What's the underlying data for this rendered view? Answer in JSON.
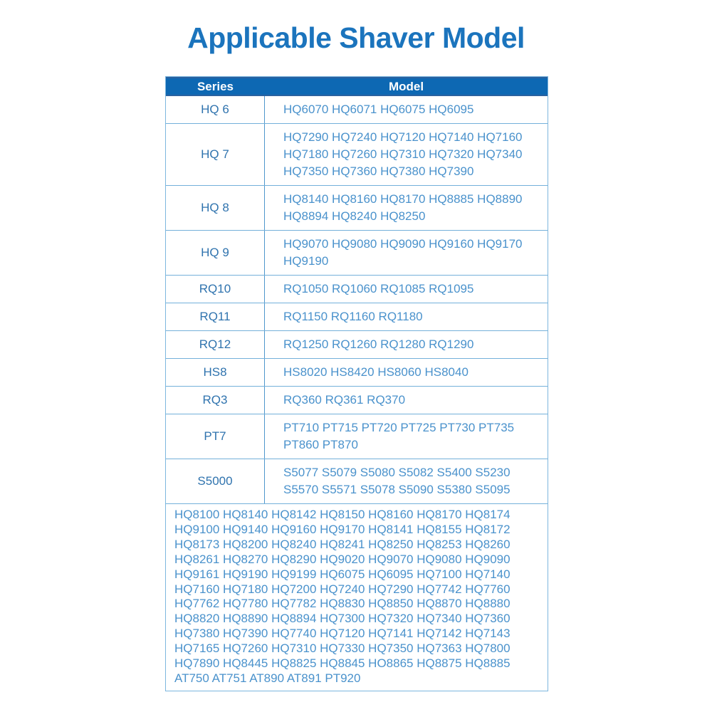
{
  "page": {
    "title": "Applicable Shaver Model"
  },
  "colors": {
    "title_text": "#1b74bd",
    "header_background": "#0d68b3",
    "header_text": "#ffffff",
    "series_text": "#2f73ae",
    "model_text": "#4a92cc",
    "grid_border": "#74b0da"
  },
  "table": {
    "headers": {
      "series": "Series",
      "model": "Model"
    },
    "rows": [
      {
        "series": "HQ 6",
        "models": "HQ6070 HQ6071 HQ6075 HQ6095"
      },
      {
        "series": "HQ 7",
        "models": "HQ7290 HQ7240 HQ7120 HQ7140 HQ7160\nHQ7180 HQ7260 HQ7310 HQ7320 HQ7340\nHQ7350 HQ7360 HQ7380 HQ7390"
      },
      {
        "series": "HQ 8",
        "models": "HQ8140 HQ8160 HQ8170 HQ8885 HQ8890\nHQ8894 HQ8240 HQ8250"
      },
      {
        "series": "HQ 9",
        "models": "HQ9070 HQ9080 HQ9090 HQ9160 HQ9170\nHQ9190"
      },
      {
        "series": "RQ10",
        "models": "RQ1050 RQ1060 RQ1085 RQ1095"
      },
      {
        "series": "RQ11",
        "models": "RQ1150 RQ1160 RQ1180"
      },
      {
        "series": "RQ12",
        "models": "RQ1250 RQ1260 RQ1280 RQ1290"
      },
      {
        "series": "HS8",
        "models": "HS8020 HS8420 HS8060 HS8040"
      },
      {
        "series": "RQ3",
        "models": "RQ360 RQ361 RQ370"
      },
      {
        "series": "PT7",
        "models": "PT710 PT715 PT720 PT725 PT730 PT735\nPT860 PT870"
      },
      {
        "series": "S5000",
        "models": "S5077 S5079 S5080 S5082 S5400 S5230\nS5570 S5571 S5078 S5090 S5380 S5095"
      }
    ],
    "footer_models": "HQ8100 HQ8140 HQ8142 HQ8150 HQ8160 HQ8170 HQ8174\nHQ9100 HQ9140 HQ9160 HQ9170 HQ8141 HQ8155 HQ8172\nHQ8173 HQ8200 HQ8240 HQ8241 HQ8250 HQ8253 HQ8260\nHQ8261 HQ8270 HQ8290 HQ9020 HQ9070 HQ9080 HQ9090\nHQ9161 HQ9190 HQ9199 HQ6075 HQ6095 HQ7100 HQ7140\nHQ7160 HQ7180 HQ7200 HQ7240 HQ7290 HQ7742 HQ7760\nHQ7762 HQ7780 HQ7782 HQ8830 HQ8850 HQ8870 HQ8880\nHQ8820 HQ8890 HQ8894 HQ7300 HQ7320 HQ7340 HQ7360\nHQ7380 HQ7390 HQ7740 HQ7120 HQ7141 HQ7142 HQ7143\nHQ7165 HQ7260 HQ7310 HQ7330 HQ7350 HQ7363 HQ7800\nHQ7890 HQ8445 HQ8825 HQ8845 HO8865 HQ8875 HQ8885\nAT750 AT751 AT890 AT891 PT920"
  }
}
